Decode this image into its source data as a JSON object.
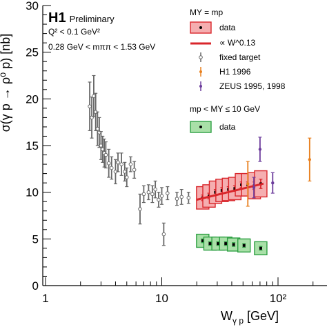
{
  "chart_data": {
    "type": "scatter",
    "ylabel": "σ(γ p → ρ⁰ p) [nb]",
    "xlabel": "W",
    "xlabel_sub": "γ p",
    "xlabel_unit": "[GeV]",
    "x_scale": "log",
    "xlim": [
      1,
      600
    ],
    "ylim": [
      0,
      30
    ],
    "x_ticks": [
      {
        "label": "1",
        "value": 1
      },
      {
        "label": "10",
        "value": 10
      },
      {
        "label": "10²",
        "value": 100
      }
    ],
    "y_ticks": [
      {
        "label": "0",
        "value": 0
      },
      {
        "label": "5",
        "value": 5
      },
      {
        "label": "10",
        "value": 10
      },
      {
        "label": "15",
        "value": 15
      },
      {
        "label": "20",
        "value": 20
      },
      {
        "label": "25",
        "value": 25
      },
      {
        "label": "30",
        "value": 30
      }
    ],
    "annotations": {
      "experiment": "H1",
      "status": "Preliminary",
      "q2_cut": "Q² < 0.1 GeV²",
      "mass_cut": "0.28 GeV < mππ < 1.53 GeV"
    },
    "legend": {
      "placement": "top-right",
      "header_elastic": "MY = mp",
      "header_pdiss": "mp < MY ≤ 10 GeV",
      "entries": [
        {
          "label": "data",
          "kind": "box-red"
        },
        {
          "label": "∝ W^0.13",
          "kind": "line-red"
        },
        {
          "label": "fixed target",
          "kind": "point-gray"
        },
        {
          "label": "H1 1996",
          "kind": "point-orange"
        },
        {
          "label": "ZEUS 1995, 1998",
          "kind": "point-purple"
        },
        {
          "label": "data",
          "kind": "box-green"
        }
      ]
    },
    "colors": {
      "elastic": "#d9262b",
      "elastic_fill": "#f5aeb0",
      "pdiss": "#2ea043",
      "pdiss_fill": "#a9e0a8",
      "fixed_target": "#666666",
      "h1_1996": "#e8801f",
      "zeus": "#6c3c9c"
    },
    "series": [
      {
        "name": "fixed target",
        "points": [
          {
            "x": 2.4,
            "y": 19.2,
            "err": 2.6
          },
          {
            "x": 2.5,
            "y": 18.0,
            "err": 2.2
          },
          {
            "x": 2.6,
            "y": 20.3,
            "err": 2.2
          },
          {
            "x": 2.7,
            "y": 18.6,
            "err": 2.0
          },
          {
            "x": 2.8,
            "y": 16.8,
            "err": 1.8
          },
          {
            "x": 2.9,
            "y": 16.4,
            "err": 1.6
          },
          {
            "x": 3.0,
            "y": 15.0,
            "err": 1.5
          },
          {
            "x": 3.1,
            "y": 14.6,
            "err": 1.4
          },
          {
            "x": 3.2,
            "y": 14.2,
            "err": 1.5
          },
          {
            "x": 3.3,
            "y": 14.0,
            "err": 1.4
          },
          {
            "x": 3.5,
            "y": 13.1,
            "err": 1.5
          },
          {
            "x": 3.7,
            "y": 12.6,
            "err": 1.2
          },
          {
            "x": 4.0,
            "y": 12.2,
            "err": 1.3
          },
          {
            "x": 4.2,
            "y": 13.2,
            "err": 1.0
          },
          {
            "x": 4.5,
            "y": 13.0,
            "err": 1.2
          },
          {
            "x": 4.8,
            "y": 12.2,
            "err": 1.0
          },
          {
            "x": 5.0,
            "y": 11.6,
            "err": 1.0
          },
          {
            "x": 5.4,
            "y": 13.0,
            "err": 0.8
          },
          {
            "x": 5.8,
            "y": 12.4,
            "err": 0.9
          },
          {
            "x": 6.5,
            "y": 8.2,
            "err": 1.6
          },
          {
            "x": 7.0,
            "y": 9.8,
            "err": 0.9
          },
          {
            "x": 7.7,
            "y": 10.0,
            "err": 0.8
          },
          {
            "x": 8.3,
            "y": 9.8,
            "err": 0.9
          },
          {
            "x": 8.8,
            "y": 10.3,
            "err": 0.9
          },
          {
            "x": 9.4,
            "y": 9.2,
            "err": 0.8
          },
          {
            "x": 10.0,
            "y": 9.6,
            "err": 0.9
          },
          {
            "x": 10.4,
            "y": 5.5,
            "err": 1.2
          },
          {
            "x": 11.2,
            "y": 9.9,
            "err": 0.7
          },
          {
            "x": 13.5,
            "y": 9.3,
            "err": 0.7
          },
          {
            "x": 14.8,
            "y": 9.5,
            "err": 0.8
          },
          {
            "x": 17.0,
            "y": 9.4,
            "err": 0.6
          }
        ]
      },
      {
        "name": "H1 1996",
        "points": [
          {
            "x": 55,
            "y": 10.9,
            "err": 2.4
          },
          {
            "x": 187,
            "y": 13.5,
            "err": 2.3
          }
        ]
      },
      {
        "name": "ZEUS 1995, 1998",
        "points": [
          {
            "x": 62,
            "y": 10.5,
            "err": 1.1
          },
          {
            "x": 70,
            "y": 14.6,
            "err": 1.3
          },
          {
            "x": 90,
            "y": 11.0,
            "err": 1.1
          }
        ]
      },
      {
        "name": "data",
        "sample": "elastic",
        "points": [
          {
            "x": 22.5,
            "y": 9.4,
            "err": 0.3,
            "box_ylo": 8.2,
            "box_yhi": 10.6
          },
          {
            "x": 25.5,
            "y": 9.6,
            "err": 0.3,
            "box_ylo": 8.4,
            "box_yhi": 10.8
          },
          {
            "x": 29.0,
            "y": 10.0,
            "err": 0.3,
            "box_ylo": 8.8,
            "box_yhi": 11.2
          },
          {
            "x": 33.0,
            "y": 10.2,
            "err": 0.3,
            "box_ylo": 9.0,
            "box_yhi": 11.4
          },
          {
            "x": 37.5,
            "y": 10.3,
            "err": 0.3,
            "box_ylo": 9.1,
            "box_yhi": 11.5
          },
          {
            "x": 42.5,
            "y": 10.4,
            "err": 0.3,
            "box_ylo": 9.2,
            "box_yhi": 11.6
          },
          {
            "x": 48.5,
            "y": 10.8,
            "err": 0.3,
            "box_ylo": 9.6,
            "box_yhi": 12.0
          },
          {
            "x": 55.0,
            "y": 10.8,
            "err": 0.3,
            "box_ylo": 9.6,
            "box_yhi": 12.0
          },
          {
            "x": 62.5,
            "y": 10.7,
            "err": 0.4,
            "box_ylo": 9.3,
            "box_yhi": 12.1
          },
          {
            "x": 71.0,
            "y": 10.9,
            "err": 0.5,
            "box_ylo": 9.5,
            "box_yhi": 12.3
          }
        ]
      },
      {
        "name": "∝ W^0.13",
        "fit": {
          "x_from": 20,
          "x_to": 75,
          "y_at_20": 9.2,
          "exponent": 0.13
        }
      },
      {
        "name": "data",
        "sample": "proton-dissociative",
        "points": [
          {
            "x": 22.5,
            "y": 4.8,
            "err": 0.2,
            "box_ylo": 4.1,
            "box_yhi": 5.5
          },
          {
            "x": 26.0,
            "y": 4.5,
            "err": 0.2,
            "box_ylo": 3.8,
            "box_yhi": 5.2
          },
          {
            "x": 30.5,
            "y": 4.5,
            "err": 0.2,
            "box_ylo": 3.8,
            "box_yhi": 5.2
          },
          {
            "x": 35.5,
            "y": 4.5,
            "err": 0.2,
            "box_ylo": 3.8,
            "box_yhi": 5.2
          },
          {
            "x": 41.5,
            "y": 4.4,
            "err": 0.2,
            "box_ylo": 3.7,
            "box_yhi": 5.1
          },
          {
            "x": 51.0,
            "y": 4.3,
            "err": 0.2,
            "box_ylo": 3.6,
            "box_yhi": 5.0
          },
          {
            "x": 71.0,
            "y": 4.0,
            "err": 0.2,
            "box_ylo": 3.3,
            "box_yhi": 4.7
          }
        ]
      }
    ]
  }
}
